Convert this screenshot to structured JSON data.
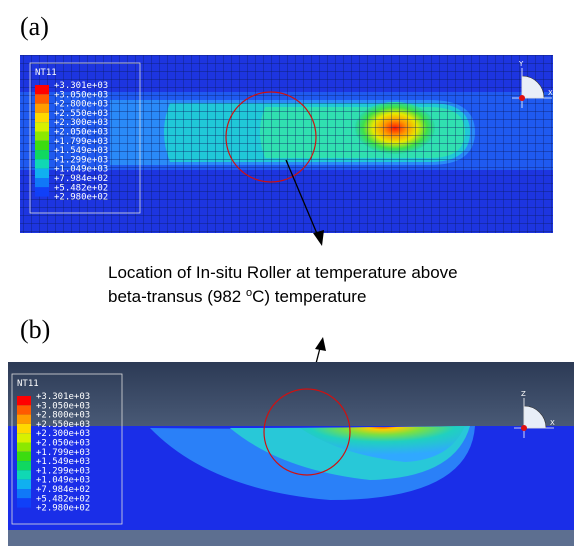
{
  "panels": [
    {
      "label": "(a)",
      "legend": {
        "title": "NT11",
        "values": [
          "+3.301e+03",
          "+3.050e+03",
          "+2.800e+03",
          "+2.550e+03",
          "+2.300e+03",
          "+2.050e+03",
          "+1.799e+03",
          "+1.549e+03",
          "+1.299e+03",
          "+1.049e+03",
          "+7.984e+02",
          "+5.482e+02",
          "+2.980e+02"
        ]
      },
      "triad": [
        "Y",
        "X"
      ]
    },
    {
      "label": "(b)",
      "legend": {
        "title": "NT11",
        "values": [
          "+3.301e+03",
          "+3.050e+03",
          "+2.800e+03",
          "+2.550e+03",
          "+2.300e+03",
          "+2.050e+03",
          "+1.799e+03",
          "+1.549e+03",
          "+1.299e+03",
          "+1.049e+03",
          "+7.984e+02",
          "+5.482e+02",
          "+2.980e+02"
        ]
      },
      "triad": [
        "Z",
        "X"
      ]
    }
  ],
  "annotation": {
    "line1": "Location of In-situ Roller at temperature above",
    "line2": [
      "beta-transus (982 ",
      "o",
      "C) temperature"
    ]
  }
}
